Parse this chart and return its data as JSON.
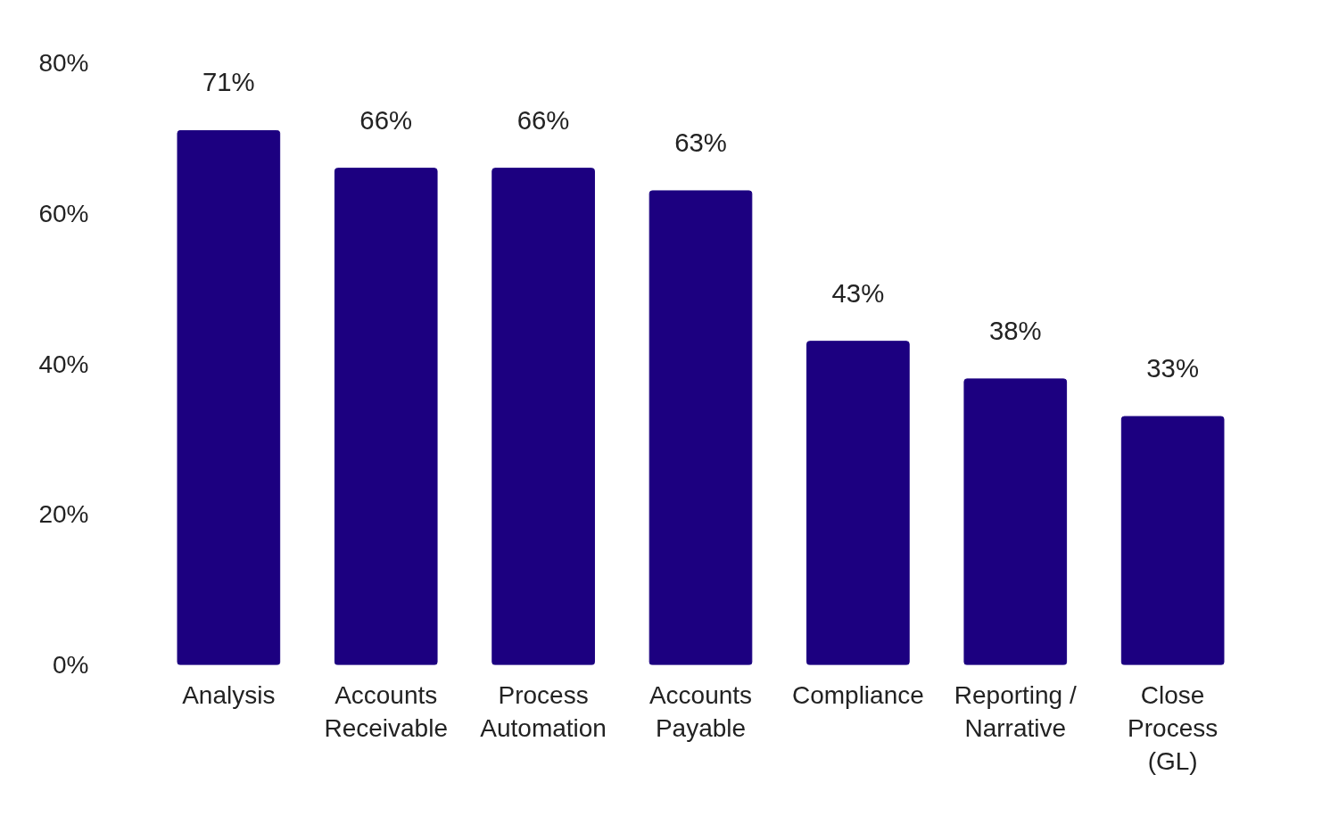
{
  "chart_data": {
    "type": "bar",
    "categories": [
      "Analysis",
      "Accounts Receivable",
      "Process Automation",
      "Accounts Payable",
      "Compliance",
      "Reporting / Narrative",
      "Close Process (GL)"
    ],
    "values": [
      71,
      66,
      66,
      63,
      43,
      38,
      33
    ],
    "color": "#1c0080",
    "value_labels": [
      "71%",
      "66%",
      "66%",
      "63%",
      "43%",
      "38%",
      "33%"
    ],
    "ylim": [
      0,
      80
    ],
    "yticks": [
      {
        "value": 0,
        "label": "0%"
      },
      {
        "value": 20,
        "label": "20%"
      },
      {
        "value": 40,
        "label": "40%"
      },
      {
        "value": 60,
        "label": "60%"
      },
      {
        "value": 80,
        "label": "80%"
      }
    ],
    "grid": false
  }
}
